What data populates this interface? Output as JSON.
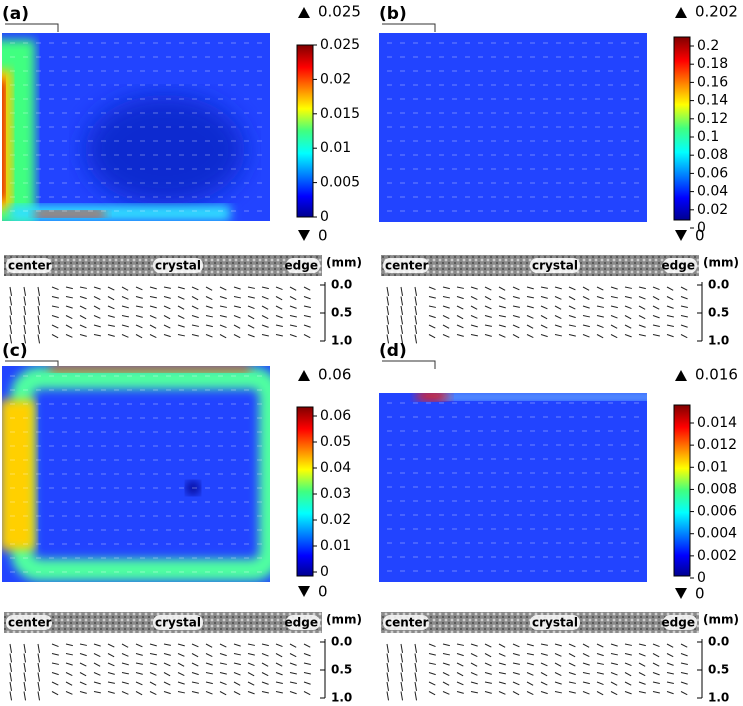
{
  "panels": [
    {
      "label": "(a)",
      "max": "0.025",
      "min": "0",
      "colorbar_ticks": [
        "0.025",
        "0.02",
        "0.015",
        "0.01",
        "0.005",
        "0"
      ],
      "crystal": {
        "center": "center",
        "crystal": "crystal",
        "edge": "edge"
      },
      "depth_unit": "(mm)",
      "depth_ticks": [
        "0.0",
        "0.5",
        "1.0"
      ]
    },
    {
      "label": "(b)",
      "max": "0.202",
      "min": "0",
      "colorbar_ticks": [
        "0.2",
        "0.18",
        "0.16",
        "0.14",
        "0.12",
        "0.1",
        "0.08",
        "0.06",
        "0.04",
        "0.02",
        "0"
      ],
      "crystal": {
        "center": "center",
        "crystal": "crystal",
        "edge": "edge"
      },
      "depth_unit": "(mm)",
      "depth_ticks": [
        "0.0",
        "0.5",
        "1.0"
      ]
    },
    {
      "label": "(c)",
      "max": "0.06",
      "min": "0",
      "colorbar_ticks": [
        "0.06",
        "0.05",
        "0.04",
        "0.03",
        "0.02",
        "0.01",
        "0"
      ],
      "crystal": {
        "center": "center",
        "crystal": "crystal",
        "edge": "edge"
      },
      "depth_unit": "(mm)",
      "depth_ticks": [
        "0.0",
        "0.5",
        "1.0"
      ]
    },
    {
      "label": "(d)",
      "max": "0.016",
      "min": "0",
      "colorbar_ticks": [
        "0.014",
        "0.012",
        "0.01",
        "0.008",
        "0.006",
        "0.004",
        "0.002",
        "0"
      ],
      "crystal": {
        "center": "center",
        "crystal": "crystal",
        "edge": "edge"
      },
      "depth_unit": "(mm)",
      "depth_ticks": [
        "0.0",
        "0.5",
        "1.0"
      ]
    }
  ]
}
